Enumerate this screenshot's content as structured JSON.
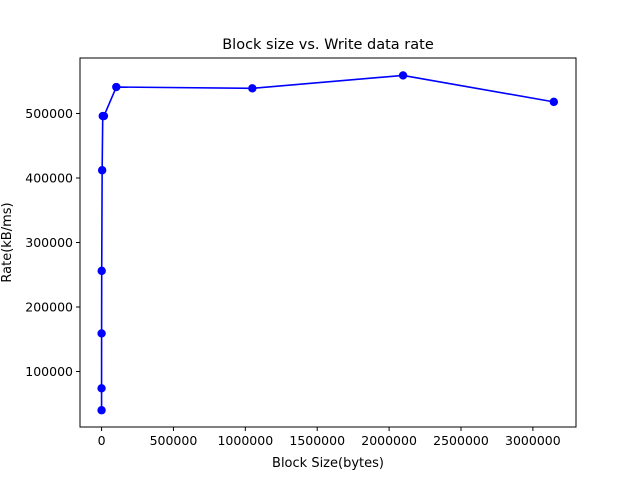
{
  "chart_data": {
    "type": "line",
    "title": "Block size vs. Write data rate",
    "xlabel": "Block Size(bytes)",
    "ylabel": "Rate(kB/ms)",
    "xlim": [
      -150000,
      3300000
    ],
    "ylim": [
      14000,
      586000
    ],
    "xticks": [
      0,
      500000,
      1000000,
      1500000,
      2000000,
      2500000,
      3000000
    ],
    "yticks": [
      100000,
      200000,
      300000,
      400000,
      500000
    ],
    "grid": false,
    "series": [
      {
        "color": "#0000ff",
        "marker": "circle",
        "x": [
          1,
          16,
          256,
          1024,
          4096,
          8192,
          16384,
          102400,
          1048576,
          2097152,
          3145728
        ],
        "y": [
          40000,
          74000,
          159000,
          256000,
          412000,
          496000,
          496000,
          541000,
          539000,
          559000,
          518000
        ]
      }
    ]
  }
}
